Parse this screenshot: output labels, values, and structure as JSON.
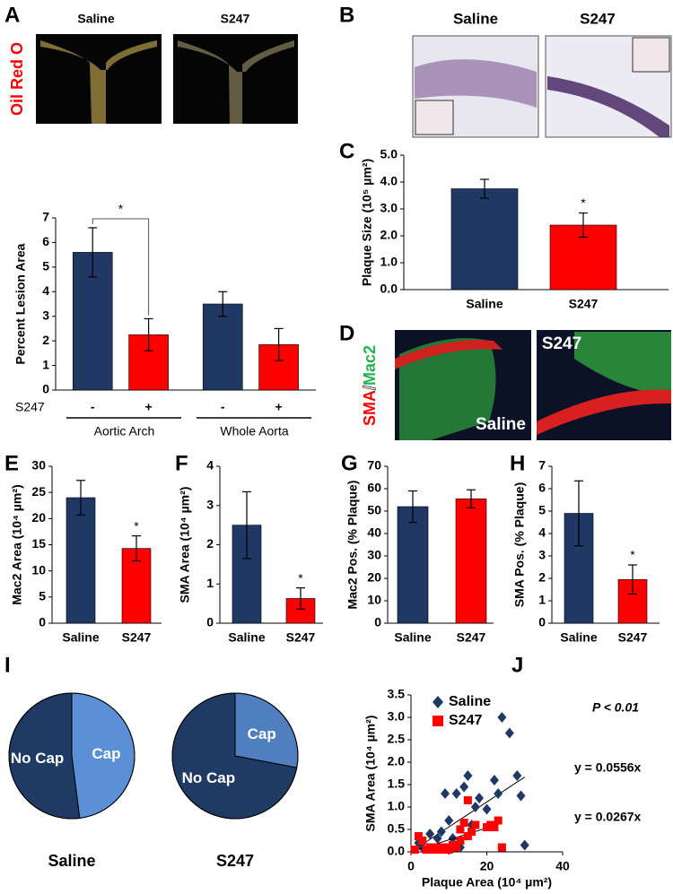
{
  "panel_labels": [
    "A",
    "B",
    "C",
    "D",
    "E",
    "F",
    "G",
    "H",
    "I",
    "J"
  ],
  "panel_a_images": {
    "stain": "Oil Red O",
    "titles": [
      "Saline",
      "S247"
    ]
  },
  "panel_b_images": {
    "titles": [
      "Saline",
      "S247"
    ]
  },
  "panel_d_images": {
    "stain": [
      "SMA",
      "/",
      "Mac2"
    ],
    "titles": [
      "Saline",
      "S247"
    ]
  },
  "chart_data": [
    {
      "type": "grouped_bar",
      "ylabel": "Percent Lesion Area",
      "categories": [
        "Aortic Arch",
        "Whole Aorta"
      ],
      "series_label": "S247",
      "series": [
        {
          "name": "-",
          "color": "#1f3864",
          "values": [
            5.6,
            3.5
          ],
          "errors": [
            1.0,
            0.5
          ]
        },
        {
          "name": "+",
          "color": "#ff0000",
          "values": [
            2.25,
            1.85
          ],
          "errors": [
            0.65,
            0.65
          ]
        }
      ],
      "annotation": "*",
      "ylim": [
        0,
        7
      ],
      "yticks": [
        0,
        1,
        2,
        3,
        4,
        5,
        6,
        7
      ]
    },
    {
      "type": "bar",
      "ylabel": "Plaque Size (10⁵ µm²)",
      "categories": [
        "Saline",
        "S247"
      ],
      "values": [
        3.75,
        2.4
      ],
      "errors": [
        0.35,
        0.45
      ],
      "colors": [
        "#1f3864",
        "#ff0000"
      ],
      "annotation": "*",
      "ylim": [
        0,
        5
      ],
      "yticks": [
        {
          "value": 0,
          "label": "0.0"
        },
        {
          "value": 1,
          "label": "1.0"
        },
        {
          "value": 2,
          "label": "2.0"
        },
        {
          "value": 3,
          "label": "3.0"
        },
        {
          "value": 4,
          "label": "4.0"
        },
        {
          "value": 5,
          "label": "5.0"
        }
      ]
    },
    {
      "type": "bar",
      "ylabel": "Mac2 Area (10⁴ µm²)",
      "categories": [
        "Saline",
        "S247"
      ],
      "values": [
        24,
        14.3
      ],
      "errors": [
        3.3,
        2.4
      ],
      "colors": [
        "#1f3864",
        "#ff0000"
      ],
      "annotation": "*",
      "ylim": [
        0,
        30
      ],
      "yticks": [
        0,
        5,
        10,
        15,
        20,
        25,
        30
      ]
    },
    {
      "type": "bar",
      "ylabel": "SMA Area (10⁴ µm²)",
      "categories": [
        "Saline",
        "S247"
      ],
      "values": [
        2.5,
        0.63
      ],
      "errors": [
        0.85,
        0.27
      ],
      "colors": [
        "#1f3864",
        "#ff0000"
      ],
      "annotation": "*",
      "ylim": [
        0,
        4
      ],
      "yticks": [
        0,
        1,
        2,
        3,
        4
      ]
    },
    {
      "type": "bar",
      "ylabel": "Mac2 Pos. (% Plaque)",
      "categories": [
        "Saline",
        "S247"
      ],
      "values": [
        52,
        55.5
      ],
      "errors": [
        7,
        4
      ],
      "colors": [
        "#1f3864",
        "#ff0000"
      ],
      "ylim": [
        0,
        70
      ],
      "yticks": [
        0,
        10,
        20,
        30,
        40,
        50,
        60,
        70
      ]
    },
    {
      "type": "bar",
      "ylabel": "SMA Pos. (% Plaque)",
      "categories": [
        "Saline",
        "S247"
      ],
      "values": [
        4.9,
        1.95
      ],
      "errors": [
        1.45,
        0.65
      ],
      "colors": [
        "#1f3864",
        "#ff0000"
      ],
      "annotation": "*",
      "ylim": [
        0,
        7
      ],
      "yticks": [
        0,
        1,
        2,
        3,
        4,
        5,
        6,
        7
      ]
    },
    {
      "type": "pie",
      "title": "Saline",
      "labels": [
        "Cap",
        "No Cap"
      ],
      "values": [
        48,
        52
      ],
      "colors": [
        "#5b8fd6",
        "#1f3b63"
      ]
    },
    {
      "type": "pie",
      "title": "S247",
      "labels": [
        "Cap",
        "No Cap"
      ],
      "values": [
        28,
        72
      ],
      "colors": [
        "#4f7fbf",
        "#1f3b63"
      ]
    },
    {
      "type": "scatter",
      "xlabel": "Plaque Area (10⁴ µm²)",
      "ylabel": "SMA Area (10⁴ µm²)",
      "xlim": [
        0,
        40
      ],
      "xticks": [
        0,
        20,
        40
      ],
      "ylim": [
        0,
        3.5
      ],
      "yticks": [
        {
          "value": 0,
          "label": "0.0"
        },
        0.5,
        {
          "value": 1,
          "label": "1.0"
        },
        1.5,
        {
          "value": 2,
          "label": "2.0"
        },
        2.5,
        {
          "value": 3,
          "label": "3.0"
        },
        3.5
      ],
      "annotations": [
        "P < 0.01",
        "y = 0.0556x",
        "y = 0.0267x"
      ],
      "series": [
        {
          "name": "Saline",
          "color": "#1f3864",
          "marker": "diamond",
          "trendline_slope": 0.0556,
          "x": [
            2,
            3,
            5,
            7,
            8,
            9,
            10,
            10,
            11,
            12,
            13,
            14,
            15,
            16,
            17,
            18,
            20,
            22,
            23,
            24,
            26,
            28,
            29,
            30
          ],
          "values": [
            0.2,
            0.1,
            0.4,
            0.3,
            0.45,
            1.3,
            0.7,
            0.05,
            0.3,
            1.3,
            0.1,
            1.45,
            1.7,
            0.6,
            1.0,
            1.2,
            0.95,
            1.6,
            1.3,
            3.0,
            2.65,
            1.7,
            1.25,
            0.15
          ]
        },
        {
          "name": "S247",
          "color": "#ff0000",
          "marker": "square",
          "trendline_slope": 0.0267,
          "x": [
            1,
            2,
            3,
            4,
            5,
            6,
            7,
            8,
            9,
            10,
            11,
            12,
            13,
            13,
            14,
            15,
            15,
            16,
            17,
            20,
            21,
            22,
            23,
            24
          ],
          "values": [
            0.05,
            0.35,
            0.25,
            0.05,
            0.1,
            0.05,
            0.1,
            0.05,
            0.1,
            0.05,
            0.15,
            0.1,
            0.5,
            0.25,
            0.65,
            1.15,
            0.35,
            0.45,
            0.6,
            0.55,
            0.6,
            0.55,
            0.7,
            0.1
          ]
        }
      ]
    }
  ]
}
